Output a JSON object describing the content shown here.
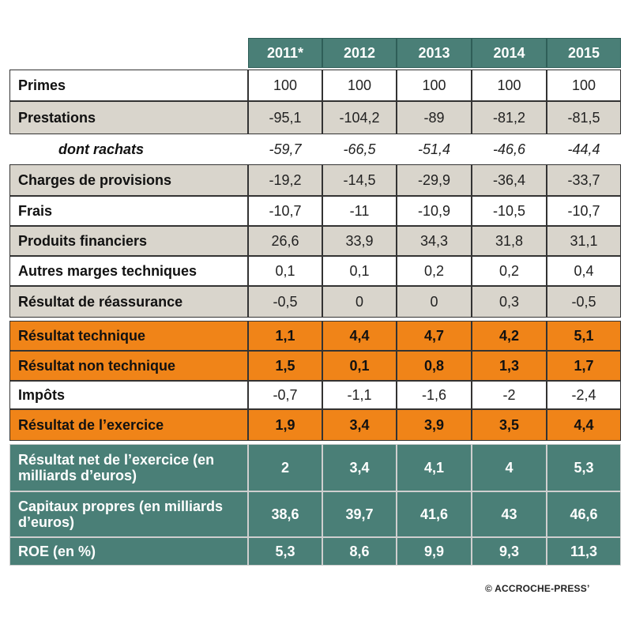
{
  "chart_data": {
    "type": "table",
    "columns": [
      "2011*",
      "2012",
      "2013",
      "2014",
      "2015"
    ],
    "rows": [
      {
        "label": "Primes",
        "style": "white",
        "values": [
          "100",
          "100",
          "100",
          "100",
          "100"
        ]
      },
      {
        "label": "Prestations",
        "style": "gray",
        "values": [
          "-95,1",
          "-104,2",
          "-89",
          "-81,2",
          "-81,5"
        ]
      },
      {
        "label": "dont rachats",
        "style": "italic",
        "values": [
          "-59,7",
          "-66,5",
          "-51,4",
          "-46,6",
          "-44,4"
        ]
      },
      {
        "label": "Charges de provisions",
        "style": "gray",
        "values": [
          "-19,2",
          "-14,5",
          "-29,9",
          "-36,4",
          "-33,7"
        ]
      },
      {
        "label": "Frais",
        "style": "white",
        "values": [
          "-10,7",
          "-11",
          "-10,9",
          "-10,5",
          "-10,7"
        ]
      },
      {
        "label": "Produits financiers",
        "style": "gray",
        "values": [
          "26,6",
          "33,9",
          "34,3",
          "31,8",
          "31,1"
        ]
      },
      {
        "label": "Autres marges techniques",
        "style": "white",
        "values": [
          "0,1",
          "0,1",
          "0,2",
          "0,2",
          "0,4"
        ]
      },
      {
        "label": "Résultat de réassurance",
        "style": "gray",
        "values": [
          "-0,5",
          "0",
          "0",
          "0,3",
          "-0,5"
        ]
      },
      {
        "label": "Résultat technique",
        "style": "orange",
        "values": [
          "1,1",
          "4,4",
          "4,7",
          "4,2",
          "5,1"
        ]
      },
      {
        "label": "Résultat non technique",
        "style": "orange",
        "values": [
          "1,5",
          "0,1",
          "0,8",
          "1,3",
          "1,7"
        ]
      },
      {
        "label": "Impôts",
        "style": "white",
        "values": [
          "-0,7",
          "-1,1",
          "-1,6",
          "-2",
          "-2,4"
        ]
      },
      {
        "label": "Résultat de l’exercice",
        "style": "orange",
        "values": [
          "1,9",
          "3,4",
          "3,9",
          "3,5",
          "4,4"
        ]
      },
      {
        "label": "Résultat net de l’exercice (en milliards d’euros)",
        "style": "teal",
        "values": [
          "2",
          "3,4",
          "4,1",
          "4",
          "5,3"
        ]
      },
      {
        "label": "Capitaux propres (en milliards d’euros)",
        "style": "teal",
        "values": [
          "38,6",
          "39,7",
          "41,6",
          "43",
          "46,6"
        ]
      },
      {
        "label": "ROE (en %)",
        "style": "teal",
        "values": [
          "5,3",
          "8,6",
          "9,9",
          "9,3",
          "11,3"
        ]
      }
    ]
  },
  "copyright": "© ACCROCHE-PRESS’",
  "colors": {
    "header_teal": "#4a7f77",
    "highlight_orange": "#f08418",
    "row_gray": "#d9d5cc",
    "row_white": "#ffffff"
  }
}
